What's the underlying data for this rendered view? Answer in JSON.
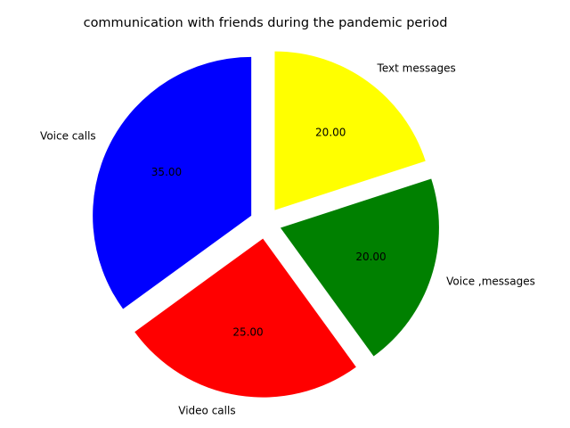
{
  "chart_data": {
    "type": "pie",
    "title": "communication with friends during the pandemic period",
    "categories": [
      "Voice calls",
      "Video calls",
      "Voice ,messages",
      "Text messages"
    ],
    "values": [
      35,
      25,
      20,
      20
    ],
    "value_labels": [
      "35.00",
      "25.00",
      "20.00",
      "20.00"
    ],
    "colors": [
      "#0000ff",
      "#ff0000",
      "#008000",
      "#ffff00"
    ],
    "start_angle_deg": 90,
    "direction": "counterclockwise",
    "exploded": true,
    "legend": "none"
  }
}
